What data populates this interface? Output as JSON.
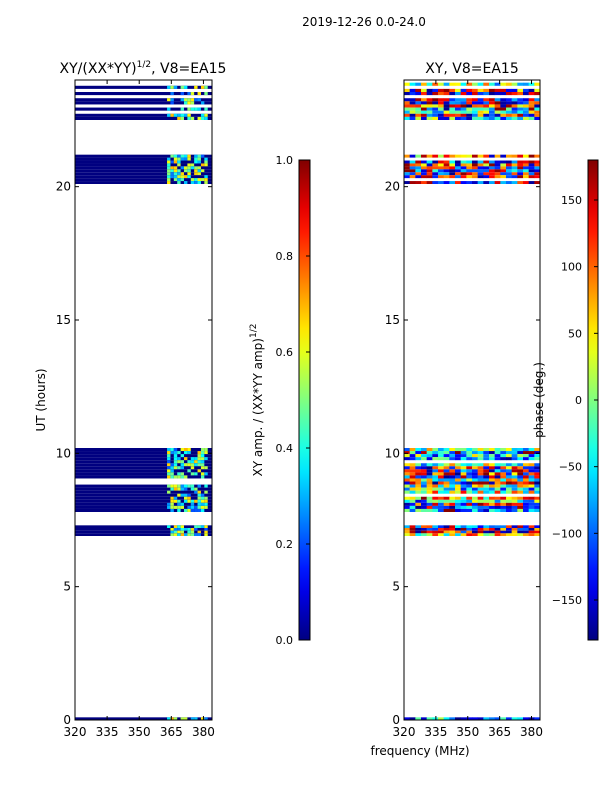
{
  "figure": {
    "suptitle": "2019-12-26 0.0-24.0",
    "xlabel": "frequency (MHz)"
  },
  "chart_data": [
    {
      "type": "heatmap",
      "title": "XY/(XX*YY)",
      "title_exponent": "1/2",
      "title_suffix": ", V8=EA15",
      "ylabel": "UT (hours)",
      "xlim": [
        320,
        384
      ],
      "ylim": [
        0,
        24
      ],
      "xticks": [
        "320",
        "335",
        "350",
        "365",
        "380"
      ],
      "yticks": [
        "0",
        "5",
        "10",
        "15",
        "20"
      ],
      "colorbar": {
        "label": "XY amp. / (XX*YY amp)",
        "label_exponent": "1/2",
        "range": [
          0,
          1
        ],
        "ticks": [
          "0.0",
          "0.2",
          "0.4",
          "0.6",
          "0.8",
          "1.0"
        ],
        "colormap": "jet"
      },
      "data_hour_bands": [
        [
          0.0,
          0.1
        ],
        [
          6.9,
          7.3
        ],
        [
          7.8,
          10.2
        ],
        [
          20.1,
          21.2
        ],
        [
          22.5,
          23.9
        ]
      ],
      "typical_value": 0.0,
      "feature_freq_range": [
        363,
        382
      ],
      "feature_value_range": [
        0.2,
        0.7
      ]
    },
    {
      "type": "heatmap",
      "title": "XY, V8=EA15",
      "xlim": [
        320,
        384
      ],
      "ylim": [
        0,
        24
      ],
      "xticks": [
        "320",
        "335",
        "350",
        "365",
        "380"
      ],
      "yticks": [
        "0",
        "5",
        "10",
        "15",
        "20"
      ],
      "colorbar": {
        "label": "phase (deg.)",
        "range": [
          -180,
          180
        ],
        "ticks": [
          "-150",
          "-100",
          "-50",
          "0",
          "50",
          "100",
          "150"
        ],
        "colormap": "jet"
      },
      "data_hour_bands": [
        [
          0.0,
          0.1
        ],
        [
          6.9,
          7.3
        ],
        [
          7.8,
          10.2
        ],
        [
          20.1,
          21.2
        ],
        [
          22.5,
          23.9
        ]
      ],
      "value_range": [
        -180,
        180
      ]
    }
  ]
}
